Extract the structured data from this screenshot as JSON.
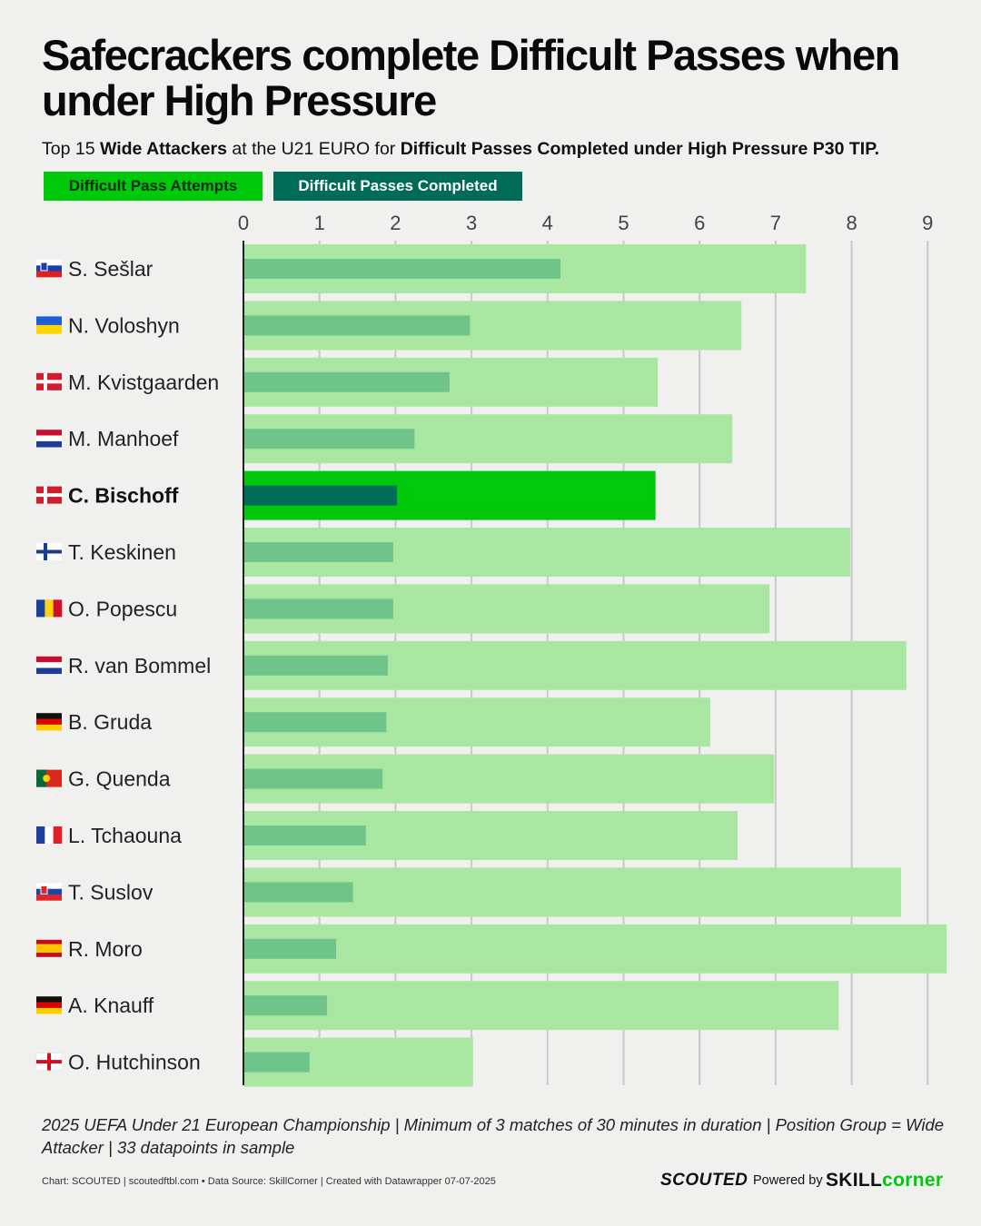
{
  "header": {
    "title": "Safecrackers complete Difficult Passes when under High Pressure",
    "subtitle_parts": [
      {
        "text": "Top 15 ",
        "bold": false
      },
      {
        "text": "Wide Attackers",
        "bold": true
      },
      {
        "text": " at the U21 EURO for ",
        "bold": false
      },
      {
        "text": "Difficult Passes Completed under High Pressure P30 TIP.",
        "bold": true
      }
    ]
  },
  "legend": {
    "attempts_label": "Difficult Pass Attempts",
    "completed_label": "Difficult Passes Completed"
  },
  "colors": {
    "attempts": "#a9e6a1",
    "completed": "#6fc489",
    "attempts_highlight": "#00c80a",
    "completed_highlight": "#006b56",
    "grid": "#c9c9c9",
    "axis": "#222222"
  },
  "chart_data": {
    "type": "bar",
    "orientation": "horizontal",
    "title": "Safecrackers complete Difficult Passes when under High Pressure",
    "xlim": [
      0,
      9.2
    ],
    "ticks": [
      0,
      1,
      2,
      3,
      4,
      5,
      6,
      7,
      8,
      9
    ],
    "highlight": "C. Bischoff",
    "categories": [
      "S. Sešlar",
      "N. Voloshyn",
      "M. Kvistgaarden",
      "M. Manhoef",
      "C. Bischoff",
      "T. Keskinen",
      "O. Popescu",
      "R. van Bommel",
      "B. Gruda",
      "G. Quenda",
      "L. Tchaouna",
      "T. Suslov",
      "R. Moro",
      "A. Knauff",
      "O. Hutchinson"
    ],
    "flags": [
      "slovenia",
      "ukraine",
      "denmark",
      "netherlands",
      "denmark",
      "finland",
      "romania",
      "netherlands",
      "germany",
      "portugal",
      "france",
      "slovakia",
      "spain",
      "germany",
      "england"
    ],
    "series": [
      {
        "name": "Difficult Pass Attempts",
        "values": [
          7.4,
          6.55,
          5.45,
          6.43,
          5.42,
          7.98,
          6.92,
          8.72,
          6.14,
          6.98,
          6.5,
          8.65,
          9.25,
          7.83,
          3.02
        ]
      },
      {
        "name": "Difficult Passes Completed",
        "values": [
          4.17,
          2.98,
          2.71,
          2.25,
          2.02,
          1.97,
          1.97,
          1.9,
          1.88,
          1.83,
          1.61,
          1.44,
          1.22,
          1.1,
          0.87
        ]
      }
    ]
  },
  "footer": {
    "note": "2025 UEFA Under 21 European Championship | Minimum of 3 matches of 30 minutes in duration | Position Group = Wide Attacker | 33 datapoints in sample",
    "credits": "Chart: SCOUTED | scoutedftbl.com • Data Source: SkillCorner | Created with Datawrapper 07-07-2025",
    "brand_scouted": "SCOUTED",
    "powered_by": "Powered by",
    "brand_skill": "SKILL",
    "brand_corner": "corner"
  }
}
